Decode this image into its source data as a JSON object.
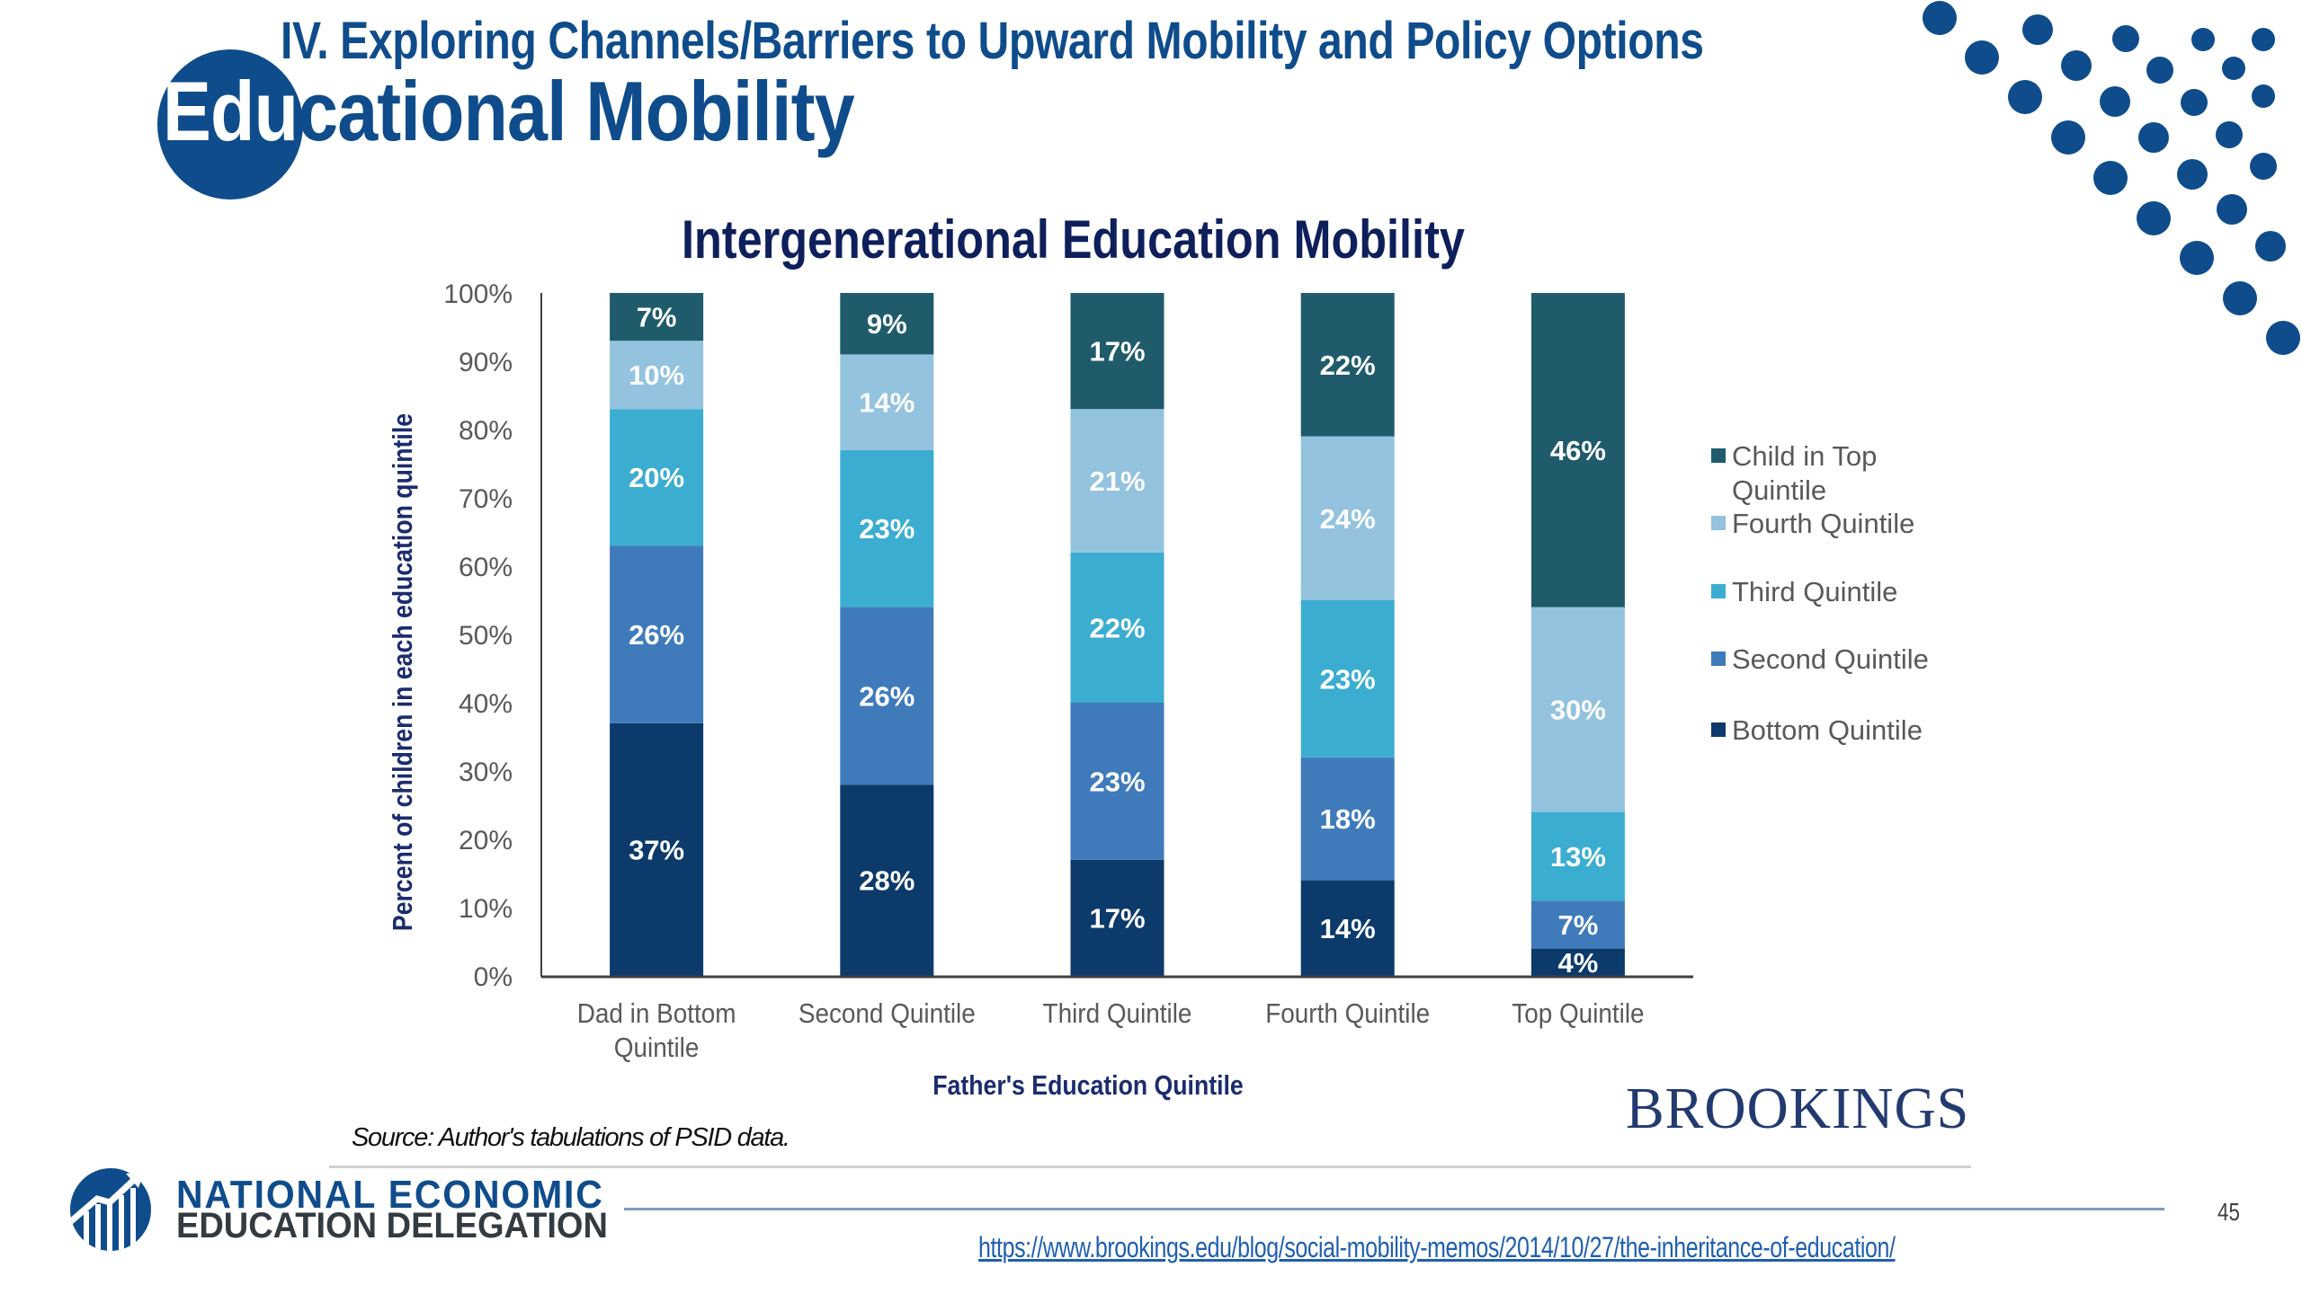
{
  "header": {
    "section_heading": "IV. Exploring Channels/Barriers to Upward Mobility and Policy Options",
    "slide_title_highlight": "Edu",
    "slide_title_rest": "cational Mobility"
  },
  "chart_data": {
    "type": "bar",
    "stacked": true,
    "title": "Intergenerational Education Mobility",
    "xlabel": "Father's Education Quintile",
    "ylabel": "Percent of children in each education quintile",
    "ylim": [
      0,
      100
    ],
    "y_ticks": [
      "0%",
      "10%",
      "20%",
      "30%",
      "40%",
      "50%",
      "60%",
      "70%",
      "80%",
      "90%",
      "100%"
    ],
    "categories": [
      [
        "Dad in Bottom",
        "Quintile"
      ],
      [
        "Second Quintile"
      ],
      [
        "Third Quintile"
      ],
      [
        "Fourth Quintile"
      ],
      [
        "Top Quintile"
      ]
    ],
    "series": [
      {
        "name": "Bottom Quintile",
        "color": "#0b3a6b",
        "values": [
          37,
          28,
          17,
          14,
          4
        ]
      },
      {
        "name": "Second Quintile",
        "color": "#3f7bbb",
        "values": [
          26,
          26,
          23,
          18,
          7
        ]
      },
      {
        "name": "Third Quintile",
        "color": "#3badd0",
        "values": [
          20,
          23,
          22,
          23,
          13
        ]
      },
      {
        "name": "Fourth Quintile",
        "color": "#93c3de",
        "values": [
          10,
          14,
          21,
          24,
          30
        ]
      },
      {
        "name": "Child in Top Quintile",
        "color": "#1f5b6b",
        "values": [
          7,
          9,
          17,
          22,
          46
        ]
      }
    ],
    "legend": {
      "position": "right",
      "order": [
        "Child in Top Quintile",
        "Fourth Quintile",
        "Third Quintile",
        "Second Quintile",
        "Bottom Quintile"
      ],
      "labels": [
        [
          "Child in Top",
          "Quintile"
        ],
        [
          "Fourth Quintile"
        ],
        [
          "Third Quintile"
        ],
        [
          "Second Quintile"
        ],
        [
          "Bottom Quintile"
        ]
      ]
    },
    "value_suffix": "%",
    "grid": false
  },
  "footer": {
    "source_note": "Source: Author's tabulations of PSID data.",
    "brookings_logo": "BROOKINGS",
    "org_name_line1": "NATIONAL ECONOMIC",
    "org_name_line2": "EDUCATION DELEGATION",
    "page_number": "45",
    "source_url": "https://www.brookings.edu/blog/social-mobility-memos/2014/10/27/the-inheritance-of-education/"
  },
  "colors": {
    "brand_blue": "#0f4c8b",
    "chart_title": "#0e1f5b",
    "axis_title": "#1b2c6e"
  }
}
